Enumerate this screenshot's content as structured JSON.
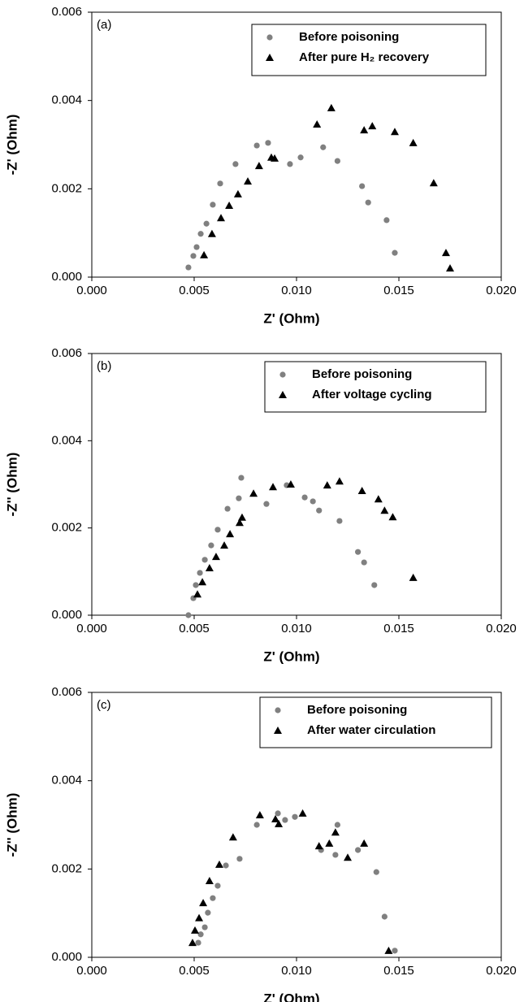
{
  "chart_data": [
    {
      "type": "scatter",
      "label": "(a)",
      "xlabel": "Z' (Ohm)",
      "ylabel": "-Z' (Ohm)",
      "xlim": [
        0,
        0.02
      ],
      "ylim": [
        0,
        0.006
      ],
      "xticks": [
        {
          "value": 0,
          "label": "0.000"
        },
        {
          "value": 0.005,
          "label": "0.005"
        },
        {
          "value": 0.01,
          "label": "0.010"
        },
        {
          "value": 0.015,
          "label": "0.015"
        },
        {
          "value": 0.02,
          "label": "0.020"
        }
      ],
      "yticks": [
        {
          "value": 0,
          "label": "0.000"
        },
        {
          "value": 0.002,
          "label": "0.002"
        },
        {
          "value": 0.004,
          "label": "0.004"
        },
        {
          "value": 0.006,
          "label": "0.006"
        }
      ],
      "grid": false,
      "legend": "top-right",
      "series": [
        {
          "name": "Before poisoning",
          "color": "#808080",
          "marker": "circle",
          "x": [
            0.00472,
            0.00496,
            0.00512,
            0.00532,
            0.0056,
            0.00591,
            0.00627,
            0.00702,
            0.00806,
            0.00861,
            0.00968,
            0.0102,
            0.0113,
            0.012,
            0.0132,
            0.0135,
            0.0144,
            0.0148
          ],
          "values": [
            0.00022,
            0.00048,
            0.00068,
            0.00098,
            0.00121,
            0.00164,
            0.00212,
            0.00256,
            0.00298,
            0.00304,
            0.00256,
            0.00271,
            0.00294,
            0.00263,
            0.00206,
            0.00169,
            0.00129,
            0.00055
          ]
        },
        {
          "name": "After pure H₂ recovery",
          "color": "#000000",
          "marker": "triangle",
          "x": [
            0.00548,
            0.00587,
            0.00631,
            0.00671,
            0.00714,
            0.00762,
            0.00817,
            0.00877,
            0.00893,
            0.011,
            0.0117,
            0.0133,
            0.0137,
            0.0148,
            0.0157,
            0.0167,
            0.0173,
            0.0175
          ],
          "values": [
            0.0005,
            0.00098,
            0.00134,
            0.00162,
            0.00188,
            0.00217,
            0.00252,
            0.00271,
            0.00269,
            0.00346,
            0.00383,
            0.00333,
            0.00342,
            0.00329,
            0.00304,
            0.00213,
            0.00055,
            0.0002
          ]
        }
      ]
    },
    {
      "type": "scatter",
      "label": "(b)",
      "xlabel": "Z' (Ohm)",
      "ylabel": "-Z'' (Ohm)",
      "xlim": [
        0,
        0.02
      ],
      "ylim": [
        0,
        0.006
      ],
      "xticks": [
        {
          "value": 0,
          "label": "0.000"
        },
        {
          "value": 0.005,
          "label": "0.005"
        },
        {
          "value": 0.01,
          "label": "0.010"
        },
        {
          "value": 0.015,
          "label": "0.015"
        },
        {
          "value": 0.02,
          "label": "0.020"
        }
      ],
      "yticks": [
        {
          "value": 0,
          "label": "0.000"
        },
        {
          "value": 0.002,
          "label": "0.002"
        },
        {
          "value": 0.004,
          "label": "0.004"
        },
        {
          "value": 0.006,
          "label": "0.006"
        }
      ],
      "grid": false,
      "legend": "top-right",
      "series": [
        {
          "name": "Before poisoning",
          "color": "#808080",
          "marker": "circle",
          "x": [
            0.00472,
            0.00496,
            0.00508,
            0.00528,
            0.00552,
            0.00583,
            0.00615,
            0.00663,
            0.00718,
            0.0073,
            0.00853,
            0.00952,
            0.0104,
            0.0108,
            0.0111,
            0.0121,
            0.013,
            0.0133,
            0.0138
          ],
          "values": [
            0,
            0.00039,
            0.00069,
            0.00097,
            0.00127,
            0.0016,
            0.00196,
            0.00244,
            0.00268,
            0.00315,
            0.00255,
            0.00298,
            0.0027,
            0.00261,
            0.0024,
            0.00216,
            0.00145,
            0.00121,
            0.00069
          ]
        },
        {
          "name": "After voltage cycling",
          "color": "#000000",
          "marker": "triangle",
          "x": [
            0.00516,
            0.0054,
            0.00575,
            0.00607,
            0.00647,
            0.00675,
            0.00722,
            0.00734,
            0.0079,
            0.00885,
            0.00972,
            0.0115,
            0.0121,
            0.0132,
            0.014,
            0.0143,
            0.0147,
            0.0157
          ],
          "values": [
            0.00048,
            0.00076,
            0.00108,
            0.00134,
            0.0016,
            0.00186,
            0.00212,
            0.00224,
            0.00279,
            0.00294,
            0.003,
            0.00298,
            0.00307,
            0.00285,
            0.00266,
            0.0024,
            0.00225,
            0.00086
          ]
        }
      ]
    },
    {
      "type": "scatter",
      "label": "(c)",
      "xlabel": "Z' (Ohm)",
      "ylabel": "-Z'' (Ohm)",
      "xlim": [
        0,
        0.02
      ],
      "ylim": [
        0,
        0.006
      ],
      "xticks": [
        {
          "value": 0,
          "label": "0.000"
        },
        {
          "value": 0.005,
          "label": "0.005"
        },
        {
          "value": 0.01,
          "label": "0.010"
        },
        {
          "value": 0.015,
          "label": "0.015"
        },
        {
          "value": 0.02,
          "label": "0.020"
        }
      ],
      "yticks": [
        {
          "value": 0,
          "label": "0.000"
        },
        {
          "value": 0.002,
          "label": "0.002"
        },
        {
          "value": 0.004,
          "label": "0.004"
        },
        {
          "value": 0.006,
          "label": "0.006"
        }
      ],
      "grid": false,
      "legend": "top-right",
      "series": [
        {
          "name": "Before poisoning",
          "color": "#808080",
          "marker": "circle",
          "x": [
            0.0052,
            0.00532,
            0.00552,
            0.00567,
            0.00591,
            0.00615,
            0.00655,
            0.00722,
            0.00806,
            0.00909,
            0.00944,
            0.00992,
            0.0112,
            0.0119,
            0.012,
            0.013,
            0.0139,
            0.0143,
            0.0148
          ],
          "values": [
            0.00033,
            0.00052,
            0.00068,
            0.00101,
            0.00134,
            0.00162,
            0.00208,
            0.00223,
            0.003,
            0.00326,
            0.00311,
            0.00318,
            0.00243,
            0.00232,
            0.003,
            0.00243,
            0.00193,
            0.00092,
            0.00015
          ]
        },
        {
          "name": "After water circulation",
          "color": "#000000",
          "marker": "triangle",
          "x": [
            0.00492,
            0.00504,
            0.00524,
            0.00544,
            0.00575,
            0.00623,
            0.0069,
            0.00821,
            0.00897,
            0.00913,
            0.0103,
            0.0111,
            0.0116,
            0.0119,
            0.0125,
            0.0133,
            0.0145
          ],
          "values": [
            0.00033,
            0.00061,
            0.00089,
            0.00123,
            0.00173,
            0.0021,
            0.00272,
            0.00322,
            0.00313,
            0.00302,
            0.00326,
            0.00252,
            0.00258,
            0.00283,
            0.00226,
            0.00258,
            0.00015
          ]
        }
      ]
    }
  ]
}
